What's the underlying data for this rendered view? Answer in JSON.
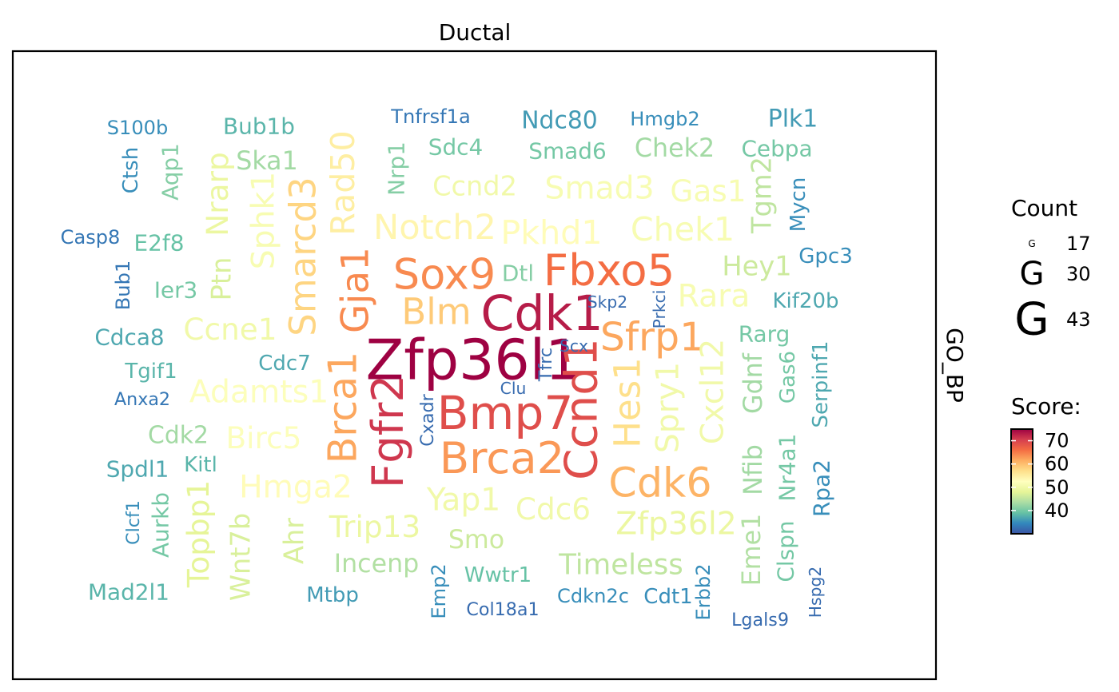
{
  "chart_data": {
    "type": "wordcloud",
    "title": "Ductal",
    "strip_label": "GO_BP",
    "legend": {
      "count_title": "Count",
      "count_glyph": "G",
      "count_values": [
        17,
        30,
        43
      ],
      "score_title": "Score:",
      "score_ticks": [
        40,
        50,
        60,
        70
      ],
      "score_range": [
        30,
        75
      ],
      "position": "right"
    },
    "colors": {
      "scale": [
        "#3B54A4",
        "#3288BD",
        "#66C2A5",
        "#ABDDA4",
        "#E6F598",
        "#FFFFBF",
        "#FEE08B",
        "#FDAE61",
        "#F46D43",
        "#D53E4F",
        "#9E0142"
      ],
      "frame": "#000000"
    },
    "words": [
      {
        "text": "Zfp36l1",
        "score": 75,
        "count": 43
      },
      {
        "text": "Cdk1",
        "score": 73,
        "count": 38
      },
      {
        "text": "Bmp7",
        "score": 69,
        "count": 37
      },
      {
        "text": "Fgfr2",
        "score": 71,
        "count": 35
      },
      {
        "text": "Ccnd1",
        "score": 69,
        "count": 36
      },
      {
        "text": "Fbxo5",
        "score": 66,
        "count": 35
      },
      {
        "text": "Sox9",
        "score": 64,
        "count": 34
      },
      {
        "text": "Brca2",
        "score": 63,
        "count": 35
      },
      {
        "text": "Sfrp1",
        "score": 62,
        "count": 32
      },
      {
        "text": "Cdk6",
        "score": 61,
        "count": 33
      },
      {
        "text": "Brca1",
        "score": 62,
        "count": 32
      },
      {
        "text": "Gja1",
        "score": 64,
        "count": 31
      },
      {
        "text": "Blm",
        "score": 59,
        "count": 30
      },
      {
        "text": "Smarcd3",
        "score": 58,
        "count": 30
      },
      {
        "text": "Hes1",
        "score": 57,
        "count": 30
      },
      {
        "text": "Rad50",
        "score": 55,
        "count": 28
      },
      {
        "text": "Notch2",
        "score": 54,
        "count": 29
      },
      {
        "text": "Pkhd1",
        "score": 53,
        "count": 28
      },
      {
        "text": "Chek1",
        "score": 51,
        "count": 28
      },
      {
        "text": "Smad3",
        "score": 51,
        "count": 27
      },
      {
        "text": "Gas1",
        "score": 51,
        "count": 26
      },
      {
        "text": "Ccnd2",
        "score": 50,
        "count": 24
      },
      {
        "text": "Sphk1",
        "score": 51,
        "count": 27
      },
      {
        "text": "Adamts1",
        "score": 52,
        "count": 27
      },
      {
        "text": "Ccne1",
        "score": 50,
        "count": 26
      },
      {
        "text": "Birc5",
        "score": 52,
        "count": 26
      },
      {
        "text": "Hmga2",
        "score": 53,
        "count": 27
      },
      {
        "text": "Yap1",
        "score": 50,
        "count": 27
      },
      {
        "text": "Cdc6",
        "score": 50,
        "count": 26
      },
      {
        "text": "Trip13",
        "score": 49,
        "count": 26
      },
      {
        "text": "Zfp36l2",
        "score": 49,
        "count": 27
      },
      {
        "text": "Spry1",
        "score": 50,
        "count": 27
      },
      {
        "text": "Cxcl12",
        "score": 50,
        "count": 27
      },
      {
        "text": "Rara",
        "score": 51,
        "count": 27
      },
      {
        "text": "Hey1",
        "score": 46,
        "count": 24
      },
      {
        "text": "Tgm2",
        "score": 45,
        "count": 24
      },
      {
        "text": "Nrarp",
        "score": 49,
        "count": 26
      },
      {
        "text": "Ptn",
        "score": 47,
        "count": 24
      },
      {
        "text": "Topbp1",
        "score": 48,
        "count": 26
      },
      {
        "text": "Wnt7b",
        "score": 47,
        "count": 24
      },
      {
        "text": "Ahr",
        "score": 47,
        "count": 24
      },
      {
        "text": "Smo",
        "score": 46,
        "count": 23
      },
      {
        "text": "Timeless",
        "score": 45,
        "count": 25
      },
      {
        "text": "Incenp",
        "score": 44,
        "count": 23
      },
      {
        "text": "Eme1",
        "score": 44,
        "count": 23
      },
      {
        "text": "Nfib",
        "score": 43,
        "count": 23
      },
      {
        "text": "Gdnf",
        "score": 43,
        "count": 23
      },
      {
        "text": "Chek2",
        "score": 43,
        "count": 23
      },
      {
        "text": "Ska1",
        "score": 43,
        "count": 23
      },
      {
        "text": "Cdk2",
        "score": 43,
        "count": 22
      },
      {
        "text": "Dtl",
        "score": 41,
        "count": 21
      },
      {
        "text": "Aqp1",
        "score": 41,
        "count": 21
      },
      {
        "text": "Nrp1",
        "score": 41,
        "count": 21
      },
      {
        "text": "Ier3",
        "score": 40,
        "count": 21
      },
      {
        "text": "Sdc4",
        "score": 40,
        "count": 21
      },
      {
        "text": "Smad6",
        "score": 40,
        "count": 21
      },
      {
        "text": "Cebpa",
        "score": 40,
        "count": 21
      },
      {
        "text": "Rarg",
        "score": 40,
        "count": 21
      },
      {
        "text": "Clspn",
        "score": 40,
        "count": 21
      },
      {
        "text": "Nr4a1",
        "score": 40,
        "count": 21
      },
      {
        "text": "Gas6",
        "score": 40,
        "count": 20
      },
      {
        "text": "Aurkb",
        "score": 40,
        "count": 21
      },
      {
        "text": "Wwtr1",
        "score": 39,
        "count": 20
      },
      {
        "text": "E2f8",
        "score": 39,
        "count": 21
      },
      {
        "text": "Bub1b",
        "score": 38,
        "count": 21
      },
      {
        "text": "Tgif1",
        "score": 38,
        "count": 20
      },
      {
        "text": "Kitl",
        "score": 38,
        "count": 20
      },
      {
        "text": "Mad2l1",
        "score": 38,
        "count": 21
      },
      {
        "text": "Spdl1",
        "score": 37,
        "count": 21
      },
      {
        "text": "Cdc7",
        "score": 37,
        "count": 20
      },
      {
        "text": "Cdca8",
        "score": 37,
        "count": 21
      },
      {
        "text": "Kif20b",
        "score": 37,
        "count": 20
      },
      {
        "text": "Serpinf1",
        "score": 37,
        "count": 20
      },
      {
        "text": "Ndc80",
        "score": 36,
        "count": 22
      },
      {
        "text": "Plk1",
        "score": 36,
        "count": 22
      },
      {
        "text": "Mtbp",
        "score": 36,
        "count": 20
      },
      {
        "text": "Cdt1",
        "score": 35,
        "count": 20
      },
      {
        "text": "Emp2",
        "score": 35,
        "count": 19
      },
      {
        "text": "Rpa2",
        "score": 35,
        "count": 21
      },
      {
        "text": "Mycn",
        "score": 35,
        "count": 20
      },
      {
        "text": "Gpc3",
        "score": 35,
        "count": 20
      },
      {
        "text": "Ctsh",
        "score": 35,
        "count": 20
      },
      {
        "text": "S100b",
        "score": 35,
        "count": 19
      },
      {
        "text": "Hmgb2",
        "score": 35,
        "count": 19
      },
      {
        "text": "Cdkn2c",
        "score": 35,
        "count": 19
      },
      {
        "text": "Erbb2",
        "score": 35,
        "count": 19
      },
      {
        "text": "Clcf1",
        "score": 35,
        "count": 18
      },
      {
        "text": "Tnfrsf1a",
        "score": 33,
        "count": 19
      },
      {
        "text": "Casp8",
        "score": 33,
        "count": 19
      },
      {
        "text": "Bub1",
        "score": 33,
        "count": 19
      },
      {
        "text": "Anxa2",
        "score": 33,
        "count": 18
      },
      {
        "text": "Cxadr",
        "score": 32,
        "count": 18
      },
      {
        "text": "Tfrc",
        "score": 32,
        "count": 18
      },
      {
        "text": "Col18a1",
        "score": 32,
        "count": 18
      },
      {
        "text": "Lgals9",
        "score": 32,
        "count": 18
      },
      {
        "text": "Hspg2",
        "score": 32,
        "count": 17
      },
      {
        "text": "Skp2",
        "score": 32,
        "count": 17
      },
      {
        "text": "Prkci",
        "score": 32,
        "count": 17
      },
      {
        "text": "Scx",
        "score": 32,
        "count": 17
      },
      {
        "text": "Clu",
        "score": 32,
        "count": 17
      }
    ]
  }
}
